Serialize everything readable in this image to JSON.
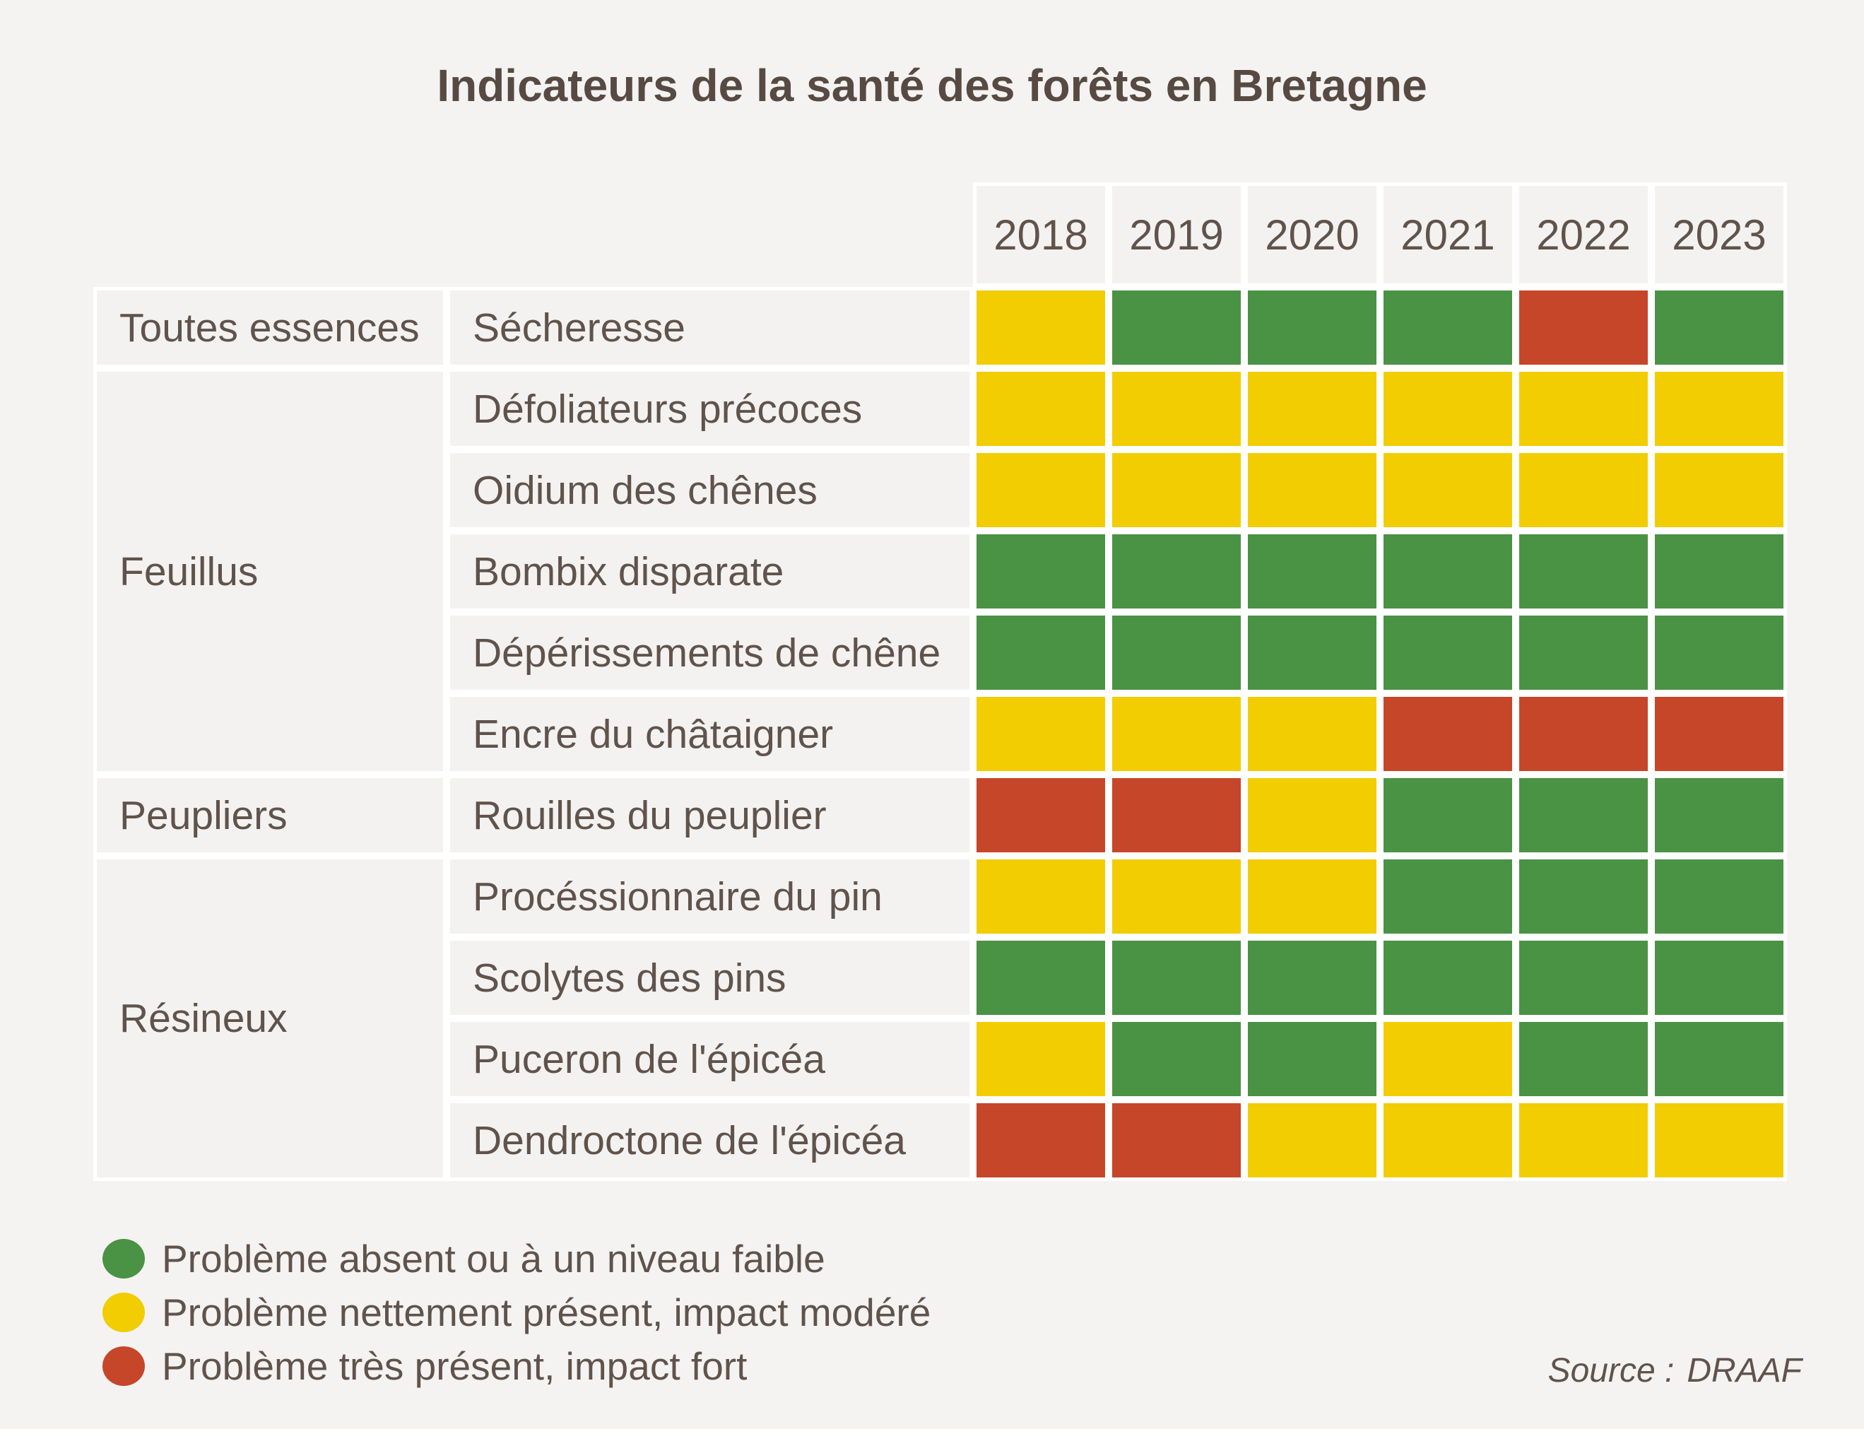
{
  "title": "Indicateurs de la santé des forêts en Bretagne",
  "source": {
    "label": "Source :",
    "value": "DRAAF"
  },
  "colors": {
    "page_background": "#f4f3f2",
    "cell_background": "#f3f2f0",
    "grid_lines": "#ffffff",
    "text": "#60534b",
    "title_text": "#574a42",
    "low": "#4a9244",
    "moderate": "#f1cd02",
    "high": "#c64629"
  },
  "chart_data": {
    "type": "heatmap",
    "title": "Indicateurs de la santé des forêts en Bretagne",
    "x_categories": [
      "2018",
      "2019",
      "2020",
      "2021",
      "2022",
      "2023"
    ],
    "value_levels": [
      "low",
      "moderate",
      "high"
    ],
    "value_colors": {
      "low": "#4a9244",
      "moderate": "#f1cd02",
      "high": "#c64629"
    },
    "row_groups": [
      {
        "name": "Toutes essences",
        "rows": [
          {
            "label": "Sécheresse",
            "values": [
              "moderate",
              "low",
              "low",
              "low",
              "high",
              "low"
            ]
          }
        ]
      },
      {
        "name": "Feuillus",
        "rows": [
          {
            "label": "Défoliateurs précoces",
            "values": [
              "moderate",
              "moderate",
              "moderate",
              "moderate",
              "moderate",
              "moderate"
            ]
          },
          {
            "label": "Oidium des chênes",
            "values": [
              "moderate",
              "moderate",
              "moderate",
              "moderate",
              "moderate",
              "moderate"
            ]
          },
          {
            "label": "Bombix disparate",
            "values": [
              "low",
              "low",
              "low",
              "low",
              "low",
              "low"
            ]
          },
          {
            "label": "Dépérissements de chêne",
            "values": [
              "low",
              "low",
              "low",
              "low",
              "low",
              "low"
            ]
          },
          {
            "label": "Encre du châtaigner",
            "values": [
              "moderate",
              "moderate",
              "moderate",
              "high",
              "high",
              "high"
            ]
          }
        ]
      },
      {
        "name": "Peupliers",
        "rows": [
          {
            "label": "Rouilles du peuplier",
            "values": [
              "high",
              "high",
              "moderate",
              "low",
              "low",
              "low"
            ]
          }
        ]
      },
      {
        "name": "Résineux",
        "rows": [
          {
            "label": "Procéssionnaire du pin",
            "values": [
              "moderate",
              "moderate",
              "moderate",
              "low",
              "low",
              "low"
            ]
          },
          {
            "label": "Scolytes des pins",
            "values": [
              "low",
              "low",
              "low",
              "low",
              "low",
              "low"
            ]
          },
          {
            "label": "Puceron de l'épicéa",
            "values": [
              "moderate",
              "low",
              "low",
              "moderate",
              "low",
              "low"
            ]
          },
          {
            "label": "Dendroctone de l'épicéa",
            "values": [
              "high",
              "high",
              "moderate",
              "moderate",
              "moderate",
              "moderate"
            ]
          }
        ]
      }
    ],
    "legend": [
      {
        "level": "low",
        "color": "#4a9244",
        "label": "Problème absent ou à un niveau faible"
      },
      {
        "level": "moderate",
        "color": "#f1cd02",
        "label": "Problème nettement présent, impact modéré"
      },
      {
        "level": "high",
        "color": "#c64629",
        "label": "Problème très présent, impact fort"
      }
    ],
    "legend_position": "bottom-left",
    "grid": "white gaps between cells"
  }
}
